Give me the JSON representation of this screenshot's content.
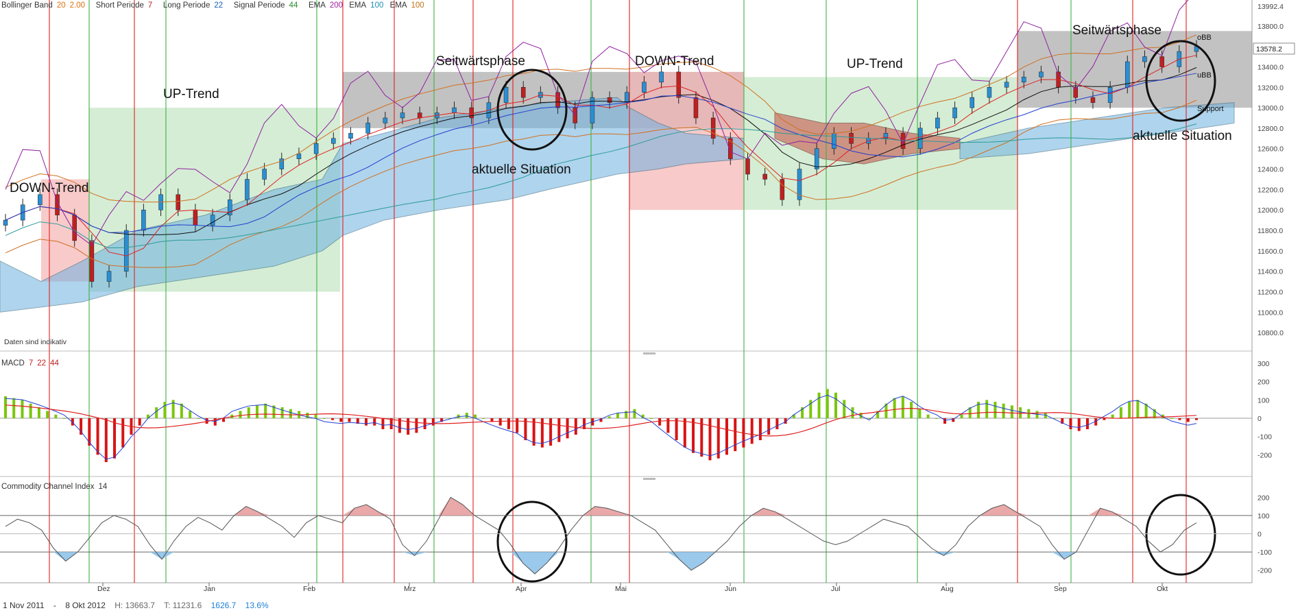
{
  "header": {
    "bb_label": "Bollinger Band",
    "bb_period": "20",
    "bb_dev": "2.00",
    "short_label": "Short Periode",
    "short_val": "7",
    "long_label": "Long Periode",
    "long_val": "22",
    "signal_label": "Signal Periode",
    "signal_val": "44",
    "ema1_label": "EMA",
    "ema1_val": "200",
    "ema2_label": "EMA",
    "ema2_val": "100",
    "ema3_label": "EMA",
    "ema3_val": "100"
  },
  "colors": {
    "red_line": "#e02020",
    "green_line": "#3cb043",
    "uptrend_fill": "#bfe3bf",
    "downtrend_fill": "#f5b3b3",
    "sideways_fill": "#8f8f8f",
    "cloud_blue": "#6fb2e0",
    "cloud_red": "#c85a50",
    "macd_pos": "#7ac70c",
    "macd_neg": "#d81414",
    "cci_pos": "#e8a0a0",
    "cci_neg": "#8fc3ea"
  },
  "footer": {
    "start": "1 Nov 2011",
    "dash": "-",
    "end": "8 Okt 2012",
    "high": "H: 13663.7",
    "low": "T: 11231.6",
    "change_abs": "1626.7",
    "change_pct": "13.6%"
  },
  "notice": "Daten sind indikativ",
  "chart_data": [
    {
      "type": "candlestick",
      "title": "",
      "x_ticks": [
        "Dez",
        "Jan",
        "Feb",
        "Mrz",
        "Apr",
        "Mai",
        "Jun",
        "Jul",
        "Aug",
        "Sep",
        "Okt"
      ],
      "y_ticks": [
        13992.4,
        13800,
        13600,
        13400,
        13200,
        13000,
        12800,
        12600,
        12400,
        12200,
        12000,
        11800,
        11600,
        11400,
        11200,
        11000,
        10800
      ],
      "ylim": [
        10700,
        14000
      ],
      "last_price": "13578.2",
      "close_approx": [
        11900,
        12050,
        12150,
        11950,
        11700,
        11300,
        11400,
        11800,
        12000,
        12150,
        12000,
        11850,
        11950,
        12100,
        12300,
        12400,
        12500,
        12550,
        12650,
        12700,
        12750,
        12850,
        12900,
        12950,
        12900,
        12950,
        13000,
        12900,
        13050,
        13200,
        13100,
        13150,
        13000,
        12850,
        13100,
        13050,
        13150,
        13250,
        13350,
        13100,
        12900,
        12700,
        12500,
        12350,
        12300,
        12100,
        12400,
        12600,
        12750,
        12650,
        12700,
        12750,
        12600,
        12800,
        12900,
        13000,
        13100,
        13200,
        13250,
        13300,
        13350,
        13200,
        13100,
        13050,
        13200,
        13450,
        13500,
        13400,
        13550,
        13600
      ],
      "annotations": [
        {
          "text": "DOWN-Trend"
        },
        {
          "text": "UP-Trend"
        },
        {
          "text": "Seitwärtsphase"
        },
        {
          "text": "aktuelle Situation"
        },
        {
          "text": "DOWN-Trend"
        },
        {
          "text": "UP-Trend"
        },
        {
          "text": "Seitwärtsphase"
        },
        {
          "text": "aktuelle Situation"
        },
        {
          "text": "oBB"
        },
        {
          "text": "uBB"
        },
        {
          "text": "Support"
        }
      ]
    },
    {
      "type": "bar",
      "title": "MACD",
      "params": [
        "7",
        "22",
        "44"
      ],
      "y_ticks": [
        300,
        200,
        100,
        0,
        -100,
        -200
      ],
      "ylim": [
        -300,
        300
      ],
      "histogram": [
        120,
        110,
        100,
        80,
        60,
        40,
        20,
        0,
        -40,
        -90,
        -150,
        -200,
        -240,
        -220,
        -160,
        -90,
        -40,
        20,
        60,
        90,
        100,
        80,
        40,
        0,
        -30,
        -40,
        -20,
        20,
        40,
        60,
        70,
        80,
        70,
        60,
        50,
        40,
        30,
        20,
        0,
        -10,
        -20,
        -20,
        -30,
        -40,
        -40,
        -60,
        -60,
        -80,
        -90,
        -80,
        -60,
        -40,
        -20,
        0,
        20,
        30,
        20,
        0,
        -20,
        -40,
        -60,
        -80,
        -120,
        -150,
        -160,
        -150,
        -130,
        -110,
        -90,
        -60,
        -40,
        -20,
        10,
        30,
        40,
        50,
        20,
        0,
        -40,
        -80,
        -120,
        -160,
        -190,
        -210,
        -230,
        -220,
        -200,
        -180,
        -160,
        -140,
        -120,
        -90,
        -60,
        -30,
        20,
        60,
        100,
        140,
        160,
        140,
        100,
        60,
        30,
        0,
        40,
        80,
        110,
        120,
        90,
        50,
        20,
        0,
        -30,
        -20,
        20,
        60,
        90,
        100,
        90,
        80,
        70,
        60,
        50,
        40,
        30,
        0,
        -30,
        -60,
        -70,
        -60,
        -40,
        -10,
        20,
        60,
        90,
        100,
        80,
        50,
        20,
        0,
        -10,
        -20,
        -10
      ]
    },
    {
      "type": "line",
      "title": "Commodity Channel Index",
      "period": "14",
      "y_ticks": [
        200,
        100,
        0,
        -100,
        -200
      ],
      "ylim": [
        -250,
        250
      ],
      "values": [
        40,
        80,
        60,
        20,
        -80,
        -150,
        -100,
        -20,
        60,
        100,
        80,
        40,
        -60,
        -140,
        -40,
        40,
        90,
        60,
        20,
        100,
        150,
        120,
        80,
        40,
        -20,
        60,
        100,
        80,
        60,
        140,
        160,
        120,
        80,
        -60,
        -120,
        -40,
        80,
        200,
        160,
        100,
        60,
        20,
        -60,
        -160,
        -220,
        -160,
        -80,
        20,
        100,
        150,
        140,
        120,
        100,
        60,
        20,
        -60,
        -140,
        -200,
        -160,
        -100,
        -40,
        40,
        100,
        140,
        120,
        80,
        40,
        0,
        -40,
        -60,
        -40,
        0,
        40,
        80,
        60,
        40,
        -20,
        -80,
        -120,
        -60,
        40,
        100,
        140,
        160,
        120,
        80,
        40,
        -60,
        -140,
        -100,
        20,
        140,
        120,
        80,
        40,
        -40,
        -100,
        -60,
        20,
        60
      ]
    }
  ]
}
